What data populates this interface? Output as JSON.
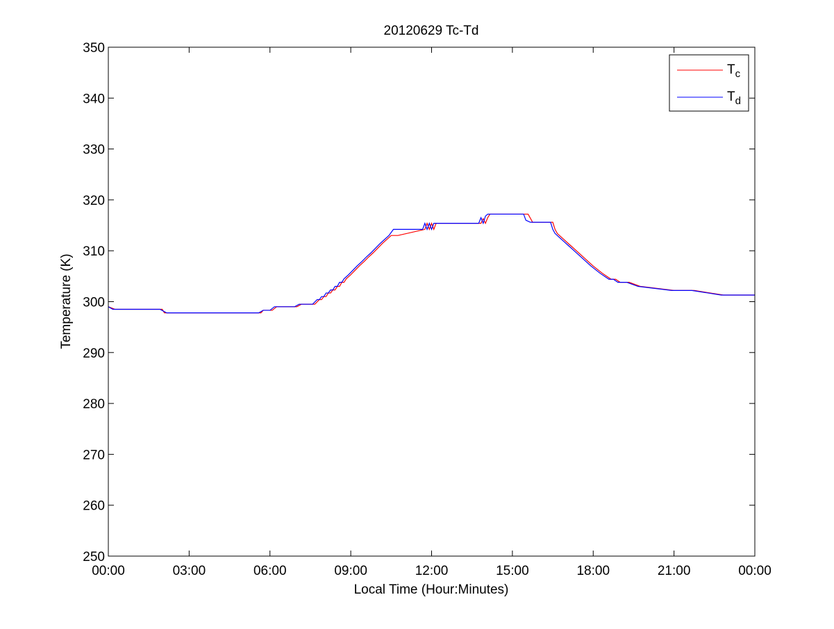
{
  "chart_data": {
    "type": "line",
    "title": "20120629 Tc-Td",
    "xlabel": "Local Time (Hour:Minutes)",
    "ylabel": "Temperature (K)",
    "xlim": [
      "00:00",
      "00:00"
    ],
    "ylim": [
      250,
      350
    ],
    "xticks": [
      "00:00",
      "03:00",
      "06:00",
      "09:00",
      "12:00",
      "15:00",
      "18:00",
      "21:00",
      "00:00"
    ],
    "yticks": [
      250,
      260,
      270,
      280,
      290,
      300,
      310,
      320,
      330,
      340,
      350
    ],
    "grid": false,
    "legend_position": "top-right",
    "series": [
      {
        "name": "Tc",
        "legend_main": "T",
        "legend_sub": "c",
        "color": "#ff0000",
        "x": [
          "00:00",
          "00:15",
          "02:00",
          "02:05",
          "05:40",
          "05:45",
          "06:05",
          "06:15",
          "07:00",
          "07:10",
          "07:40",
          "07:50",
          "07:55",
          "08:00",
          "08:05",
          "08:10",
          "08:15",
          "08:20",
          "08:25",
          "08:30",
          "08:35",
          "08:40",
          "08:45",
          "08:50",
          "09:00",
          "09:10",
          "09:20",
          "09:30",
          "09:40",
          "09:50",
          "10:00",
          "10:10",
          "10:30",
          "10:45",
          "11:45",
          "11:50",
          "11:55",
          "12:00",
          "12:05",
          "12:10",
          "12:15",
          "13:50",
          "13:55",
          "14:00",
          "14:05",
          "14:10",
          "15:30",
          "15:35",
          "15:45",
          "16:30",
          "16:35",
          "16:40",
          "16:50",
          "17:00",
          "17:10",
          "17:20",
          "17:30",
          "17:40",
          "17:50",
          "18:00",
          "18:10",
          "18:20",
          "18:30",
          "18:40",
          "18:50",
          "19:00",
          "19:10",
          "19:20",
          "19:45",
          "21:00",
          "21:45",
          "22:50",
          "24:00"
        ],
        "y": [
          299.0,
          298.5,
          298.5,
          297.8,
          297.8,
          298.3,
          298.3,
          299.0,
          299.0,
          299.5,
          299.5,
          300.4,
          300.4,
          301.0,
          301.0,
          301.7,
          301.7,
          302.3,
          302.3,
          303.0,
          303.0,
          303.8,
          303.8,
          304.5,
          305.3,
          306.2,
          307.1,
          307.9,
          308.8,
          309.6,
          310.5,
          311.4,
          313.0,
          313.0,
          314.2,
          315.4,
          314.2,
          315.4,
          314.2,
          315.4,
          315.4,
          315.4,
          316.3,
          315.4,
          316.5,
          317.2,
          317.2,
          317.2,
          315.6,
          315.6,
          314.2,
          313.4,
          312.6,
          311.8,
          311.0,
          310.2,
          309.4,
          308.6,
          307.8,
          307.0,
          306.3,
          305.6,
          305.0,
          304.4,
          304.4,
          303.8,
          303.8,
          303.8,
          303.0,
          302.2,
          302.2,
          301.3,
          301.3
        ]
      },
      {
        "name": "Td",
        "legend_main": "T",
        "legend_sub": "d",
        "color": "#0000ff",
        "x": [
          "00:00",
          "00:10",
          "01:55",
          "02:10",
          "05:35",
          "05:45",
          "06:00",
          "06:10",
          "06:55",
          "07:05",
          "07:35",
          "07:45",
          "07:50",
          "07:55",
          "08:00",
          "08:05",
          "08:10",
          "08:15",
          "08:20",
          "08:25",
          "08:30",
          "08:35",
          "08:40",
          "08:45",
          "08:55",
          "09:05",
          "09:15",
          "09:25",
          "09:35",
          "09:45",
          "09:55",
          "10:05",
          "10:25",
          "10:35",
          "11:40",
          "11:45",
          "11:50",
          "11:55",
          "12:00",
          "12:05",
          "12:10",
          "13:45",
          "13:50",
          "13:55",
          "14:00",
          "14:05",
          "15:25",
          "15:30",
          "15:40",
          "16:25",
          "16:30",
          "16:35",
          "16:45",
          "16:55",
          "17:05",
          "17:15",
          "17:25",
          "17:35",
          "17:45",
          "17:55",
          "18:05",
          "18:15",
          "18:25",
          "18:35",
          "18:45",
          "18:55",
          "19:05",
          "19:15",
          "19:40",
          "20:55",
          "21:40",
          "22:45",
          "24:00"
        ],
        "y": [
          299.0,
          298.5,
          298.5,
          297.8,
          297.8,
          298.3,
          298.3,
          299.0,
          299.0,
          299.5,
          299.5,
          300.4,
          300.4,
          301.0,
          301.0,
          301.7,
          301.7,
          302.3,
          302.3,
          303.0,
          303.0,
          303.8,
          303.8,
          304.5,
          305.3,
          306.2,
          307.1,
          307.9,
          308.8,
          309.6,
          310.5,
          311.4,
          313.0,
          314.2,
          314.2,
          315.4,
          314.2,
          315.4,
          314.2,
          315.4,
          315.4,
          315.4,
          316.5,
          315.4,
          316.8,
          317.2,
          317.2,
          316.0,
          315.6,
          315.6,
          314.2,
          313.4,
          312.6,
          311.8,
          311.0,
          310.2,
          309.4,
          308.6,
          307.8,
          307.0,
          306.3,
          305.6,
          305.0,
          304.4,
          304.4,
          303.8,
          303.8,
          303.8,
          303.0,
          302.2,
          302.2,
          301.3,
          301.3
        ]
      }
    ]
  }
}
